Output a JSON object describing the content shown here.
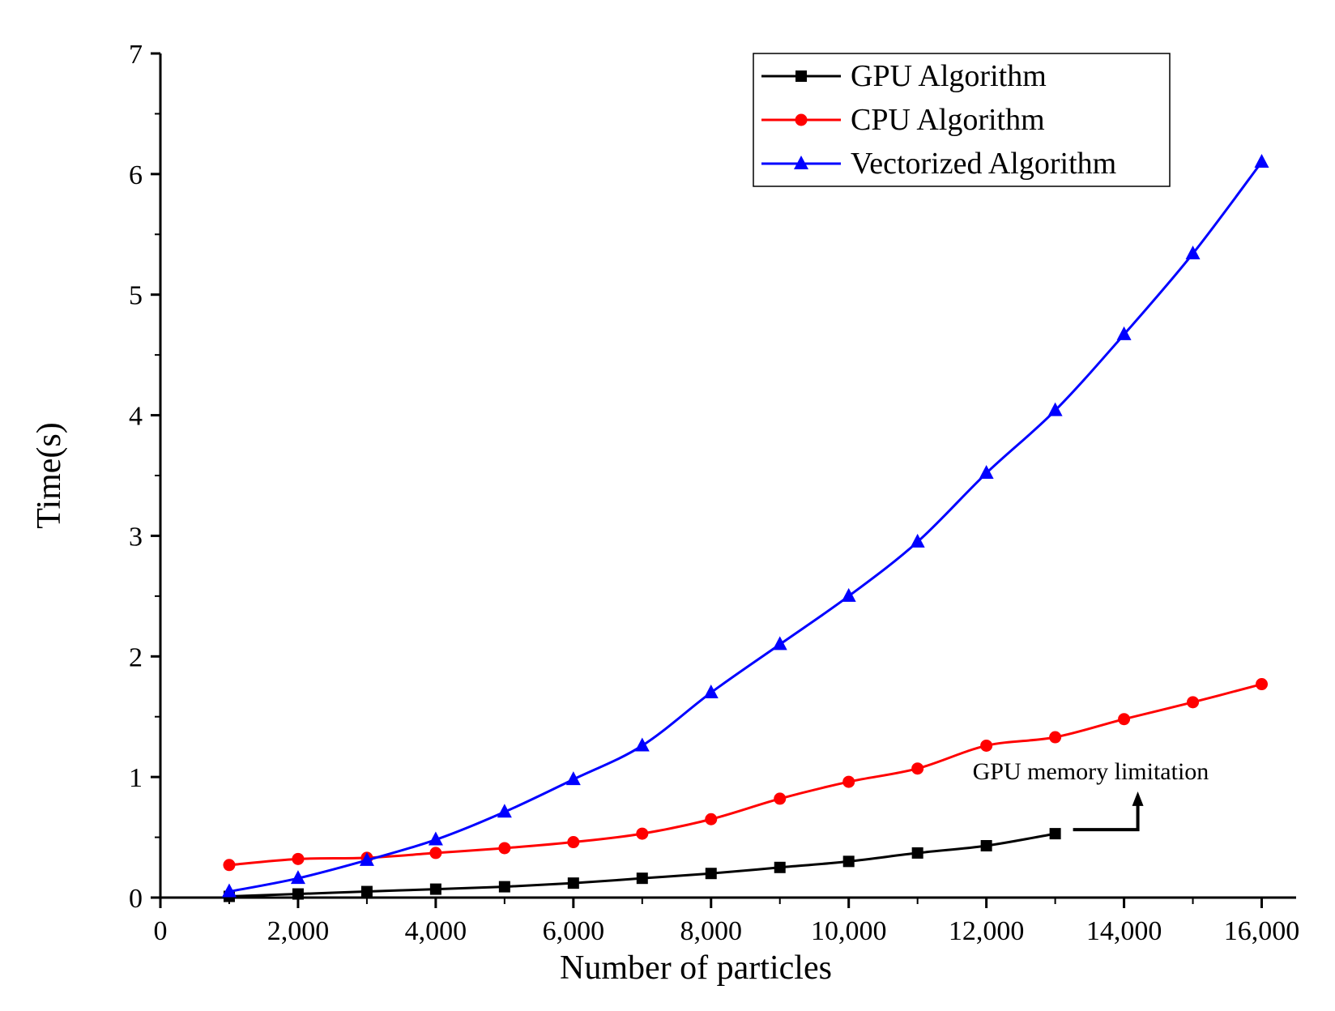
{
  "chart_data": {
    "type": "line",
    "title": "",
    "xlabel": "Number of particles",
    "ylabel": "Time(s)",
    "xlim": [
      0,
      16500
    ],
    "ylim": [
      0,
      7
    ],
    "xticks": [
      0,
      2000,
      4000,
      6000,
      8000,
      10000,
      12000,
      14000,
      16000
    ],
    "xtick_labels": [
      "0",
      "2,000",
      "4,000",
      "6,000",
      "8,000",
      "10,000",
      "12,000",
      "14,000",
      "16,000"
    ],
    "yticks": [
      0,
      1,
      2,
      3,
      4,
      5,
      6,
      7
    ],
    "ytick_labels": [
      "0",
      "1",
      "2",
      "3",
      "4",
      "5",
      "6",
      "7"
    ],
    "grid": false,
    "legend_position": "top-right",
    "series": [
      {
        "name": "GPU Algorithm",
        "color": "#000000",
        "marker": "square",
        "x": [
          1000,
          2000,
          3000,
          4000,
          5000,
          6000,
          7000,
          8000,
          9000,
          10000,
          11000,
          12000,
          13000
        ],
        "y": [
          0.01,
          0.03,
          0.05,
          0.07,
          0.09,
          0.12,
          0.16,
          0.2,
          0.25,
          0.3,
          0.37,
          0.43,
          0.53
        ]
      },
      {
        "name": "CPU Algorithm",
        "color": "#ff0000",
        "marker": "circle",
        "x": [
          1000,
          2000,
          3000,
          4000,
          5000,
          6000,
          7000,
          8000,
          9000,
          10000,
          11000,
          12000,
          13000,
          14000,
          15000,
          16000
        ],
        "y": [
          0.27,
          0.32,
          0.33,
          0.37,
          0.41,
          0.46,
          0.53,
          0.65,
          0.82,
          0.96,
          1.07,
          1.26,
          1.33,
          1.48,
          1.62,
          1.77
        ]
      },
      {
        "name": "Vectorized Algorithm",
        "color": "#0000ff",
        "marker": "triangle",
        "x": [
          1000,
          2000,
          3000,
          4000,
          5000,
          6000,
          7000,
          8000,
          9000,
          10000,
          11000,
          12000,
          13000,
          14000,
          15000,
          16000
        ],
        "y": [
          0.05,
          0.16,
          0.31,
          0.48,
          0.71,
          0.98,
          1.26,
          1.7,
          2.1,
          2.5,
          2.95,
          3.52,
          4.04,
          4.67,
          5.34,
          6.1
        ]
      }
    ],
    "annotations": [
      {
        "text": "GPU memory limitation",
        "anchor_series": "GPU Algorithm"
      }
    ]
  }
}
